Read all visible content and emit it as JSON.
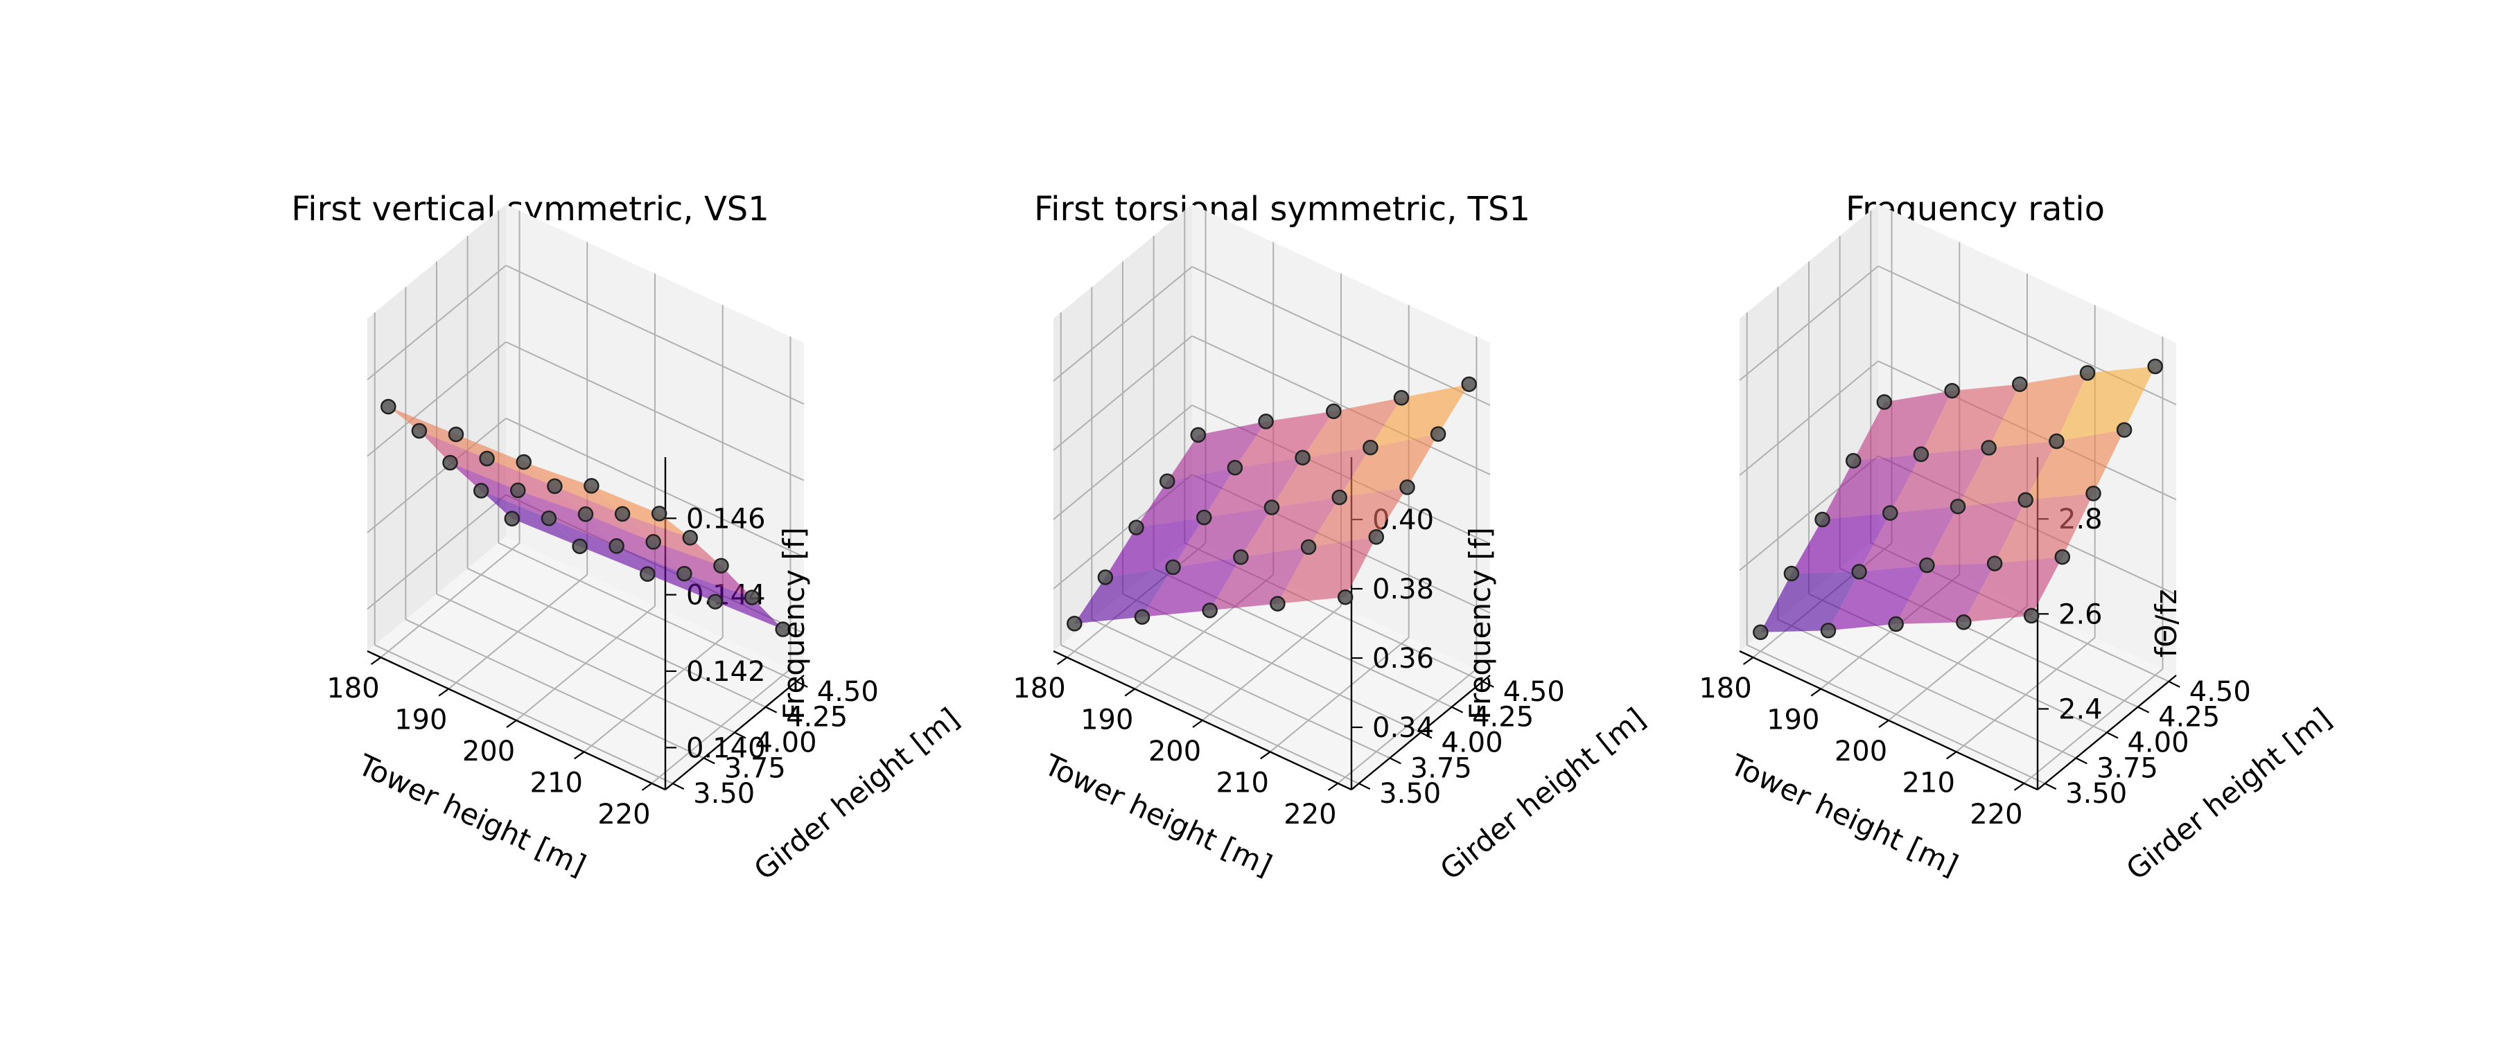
{
  "chart_data": [
    {
      "type": "surface3d",
      "title": "First vertical symmetric, VS1",
      "xlabel": "Tower height [m]",
      "ylabel": "Girder height [m]",
      "zlabel": "Frequency [f]",
      "colormap": "plasma",
      "x": [
        180,
        190,
        200,
        210,
        220
      ],
      "y": [
        3.5,
        3.75,
        4.0,
        4.25,
        4.5
      ],
      "xlim": [
        178,
        222
      ],
      "ylim": [
        3.44,
        4.56
      ],
      "zlim": [
        0.1389,
        0.1476
      ],
      "xticks": [
        "180",
        "190",
        "200",
        "210",
        "220"
      ],
      "yticks": [
        "3.50",
        "3.75",
        "4.00",
        "4.25",
        "4.50"
      ],
      "zticks": [
        "0.140",
        "0.142",
        "0.144",
        "0.146"
      ],
      "z": [
        [
          0.1453,
          0.1454,
          0.1455,
          0.1457,
          0.1458
        ],
        [
          0.144,
          0.1441,
          0.1442,
          0.1443,
          0.1445
        ],
        [
          0.1425,
          0.1426,
          0.1428,
          0.1429,
          0.1431
        ],
        [
          0.1411,
          0.1412,
          0.1413,
          0.1414,
          0.1416
        ],
        [
          0.1397,
          0.1398,
          0.1399,
          0.14,
          0.1401
        ]
      ]
    },
    {
      "type": "surface3d",
      "title": "First torsional symmetric, TS1",
      "xlabel": "Tower height [m]",
      "ylabel": "Girder height [m]",
      "zlabel": "Frequency [f]",
      "colormap": "plasma",
      "x": [
        180,
        190,
        200,
        210,
        220
      ],
      "y": [
        3.5,
        3.75,
        4.0,
        4.25,
        4.5
      ],
      "xlim": [
        178,
        222
      ],
      "ylim": [
        3.44,
        4.56
      ],
      "zlim": [
        0.322,
        0.418
      ],
      "xticks": [
        "180",
        "190",
        "200",
        "210",
        "220"
      ],
      "yticks": [
        "3.50",
        "3.75",
        "4.00",
        "4.25",
        "4.50"
      ],
      "zticks": [
        "0.34",
        "0.36",
        "0.38",
        "0.40"
      ],
      "z": [
        [
          0.33,
          0.341,
          0.352,
          0.363,
          0.374
        ],
        [
          0.336,
          0.348,
          0.36,
          0.372,
          0.384
        ],
        [
          0.343,
          0.355,
          0.367,
          0.379,
          0.391
        ],
        [
          0.349,
          0.362,
          0.374,
          0.386,
          0.399
        ],
        [
          0.355,
          0.368,
          0.38,
          0.393,
          0.406
        ]
      ]
    },
    {
      "type": "surface3d",
      "title": "Frequency ratio",
      "xlabel": "Tower height [m]",
      "ylabel": "Girder height [m]",
      "zlabel": "fΘ/fz",
      "colormap": "plasma",
      "x": [
        180,
        190,
        200,
        210,
        220
      ],
      "y": [
        3.5,
        3.75,
        4.0,
        4.25,
        4.5
      ],
      "xlim": [
        178,
        222
      ],
      "ylim": [
        3.44,
        4.56
      ],
      "zlim": [
        2.23,
        2.93
      ],
      "xticks": [
        "180",
        "190",
        "200",
        "210",
        "220"
      ],
      "yticks": [
        "3.50",
        "3.75",
        "4.00",
        "4.25",
        "4.50"
      ],
      "zticks": [
        "2.4",
        "2.6",
        "2.8"
      ],
      "z": [
        [
          2.27,
          2.34,
          2.42,
          2.49,
          2.57
        ],
        [
          2.34,
          2.41,
          2.49,
          2.56,
          2.64
        ],
        [
          2.4,
          2.48,
          2.56,
          2.64,
          2.72
        ],
        [
          2.47,
          2.55,
          2.63,
          2.71,
          2.8
        ],
        [
          2.54,
          2.63,
          2.71,
          2.8,
          2.88
        ]
      ]
    }
  ]
}
